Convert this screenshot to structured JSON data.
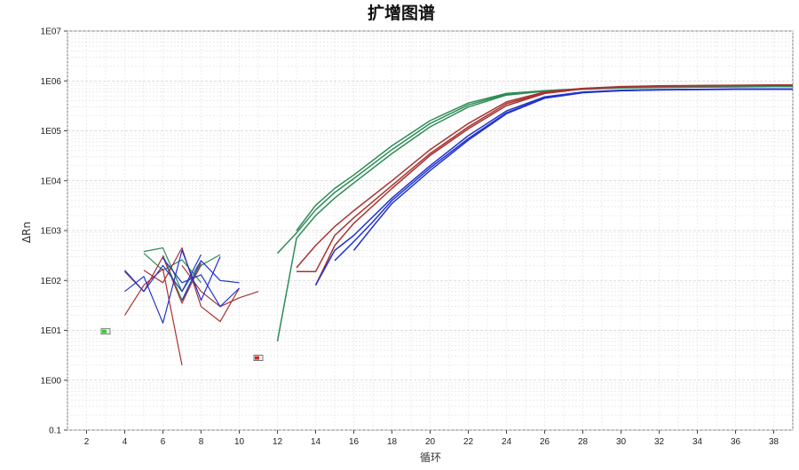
{
  "chart_data": {
    "type": "line",
    "title": "扩增图谱",
    "xlabel": "循环",
    "ylabel": "ΔRn",
    "xlim": [
      1,
      39
    ],
    "yscale": "log",
    "ylim": [
      0.1,
      10000000
    ],
    "xticks": [
      2,
      4,
      6,
      8,
      10,
      12,
      14,
      16,
      18,
      20,
      22,
      24,
      26,
      28,
      30,
      32,
      34,
      36,
      38
    ],
    "yticks": [
      {
        "v": 10000000,
        "label": "1E07"
      },
      {
        "v": 1000000,
        "label": "1E06"
      },
      {
        "v": 100000,
        "label": "1E05"
      },
      {
        "v": 10000,
        "label": "1E04"
      },
      {
        "v": 1000,
        "label": "1E03"
      },
      {
        "v": 100,
        "label": "1E02"
      },
      {
        "v": 10,
        "label": "1E01"
      },
      {
        "v": 1,
        "label": "1E00"
      },
      {
        "v": 0.1,
        "label": "0.1"
      }
    ],
    "grid": true,
    "colors": {
      "green": "#2e8b57",
      "red": "#a83232",
      "blue": "#2233cc"
    },
    "baseline_segments": [
      {
        "color": "green",
        "x": [
          5,
          6,
          7,
          8
        ],
        "y": [
          380,
          450,
          60,
          250
        ]
      },
      {
        "color": "green",
        "x": [
          5,
          6,
          7,
          8
        ],
        "y": [
          350,
          160,
          260,
          90
        ]
      },
      {
        "color": "green",
        "x": [
          6,
          7,
          8,
          9
        ],
        "y": [
          320,
          40,
          200,
          330
        ]
      },
      {
        "color": "red",
        "x": [
          4,
          5,
          6,
          7
        ],
        "y": [
          20,
          80,
          170,
          2
        ]
      },
      {
        "color": "red",
        "x": [
          4,
          5,
          6,
          7,
          8
        ],
        "y": [
          150,
          60,
          300,
          35,
          220
        ]
      },
      {
        "color": "red",
        "x": [
          5,
          6,
          7,
          8,
          9,
          10
        ],
        "y": [
          160,
          90,
          450,
          30,
          15,
          70
        ]
      },
      {
        "color": "red",
        "x": [
          7,
          8,
          9,
          10,
          11
        ],
        "y": [
          200,
          60,
          30,
          45,
          60
        ]
      },
      {
        "color": "blue",
        "x": [
          4,
          5,
          6,
          7,
          8,
          9
        ],
        "y": [
          60,
          120,
          14,
          400,
          40,
          300
        ]
      },
      {
        "color": "blue",
        "x": [
          4,
          5,
          6,
          7,
          8
        ],
        "y": [
          160,
          60,
          200,
          60,
          330
        ]
      },
      {
        "color": "blue",
        "x": [
          6,
          7,
          8,
          9,
          10
        ],
        "y": [
          280,
          90,
          130,
          30,
          70
        ]
      },
      {
        "color": "blue",
        "x": [
          7,
          8,
          9,
          10
        ],
        "y": [
          40,
          250,
          100,
          90
        ]
      }
    ],
    "series": [
      {
        "color": "green",
        "x": [
          12,
          13,
          14,
          15,
          16,
          18,
          20,
          22,
          24,
          26,
          28,
          30,
          32,
          34,
          36,
          38,
          39
        ],
        "y": [
          6,
          700,
          2000,
          4500,
          9000,
          35000,
          120000,
          300000,
          520000,
          620000,
          680000,
          720000,
          740000,
          750000,
          760000,
          770000,
          770000
        ]
      },
      {
        "color": "green",
        "x": [
          12,
          13,
          14,
          15,
          16,
          18,
          20,
          22,
          24,
          26,
          28,
          30,
          32,
          34,
          36,
          38,
          39
        ],
        "y": [
          350,
          900,
          2600,
          5800,
          11000,
          42000,
          140000,
          330000,
          540000,
          630000,
          690000,
          730000,
          750000,
          760000,
          770000,
          780000,
          780000
        ]
      },
      {
        "color": "green",
        "x": [
          13,
          14,
          15,
          16,
          18,
          20,
          22,
          24,
          26,
          28,
          30,
          32,
          34,
          36,
          38,
          39
        ],
        "y": [
          1000,
          3200,
          7000,
          13000,
          50000,
          160000,
          360000,
          560000,
          640000,
          700000,
          740000,
          760000,
          770000,
          780000,
          790000,
          790000
        ]
      },
      {
        "color": "red",
        "x": [
          13,
          14,
          15,
          16,
          18,
          20,
          22,
          24,
          26,
          28,
          30,
          32,
          34,
          36,
          38,
          39
        ],
        "y": [
          150,
          150,
          800,
          1800,
          8000,
          35000,
          120000,
          350000,
          580000,
          700000,
          760000,
          790000,
          800000,
          810000,
          820000,
          820000
        ]
      },
      {
        "color": "red",
        "x": [
          13,
          14,
          15,
          16,
          18,
          20,
          22,
          24,
          26,
          28,
          30,
          32,
          34,
          36,
          38,
          39
        ],
        "y": [
          180,
          500,
          1200,
          2500,
          10000,
          42000,
          140000,
          380000,
          600000,
          710000,
          770000,
          800000,
          810000,
          820000,
          830000,
          830000
        ]
      },
      {
        "color": "red",
        "x": [
          14,
          15,
          16,
          18,
          20,
          22,
          24,
          26,
          28,
          30,
          32,
          34,
          36,
          38,
          39
        ],
        "y": [
          80,
          500,
          1400,
          7000,
          32000,
          110000,
          320000,
          560000,
          690000,
          750000,
          780000,
          800000,
          810000,
          820000,
          820000
        ]
      },
      {
        "color": "blue",
        "x": [
          14,
          15,
          16,
          18,
          20,
          22,
          24,
          26,
          28,
          30,
          32,
          34,
          36,
          38,
          39
        ],
        "y": [
          80,
          400,
          800,
          4500,
          20000,
          80000,
          250000,
          480000,
          600000,
          650000,
          670000,
          680000,
          690000,
          690000,
          690000
        ]
      },
      {
        "color": "blue",
        "x": [
          15,
          16,
          17,
          18,
          20,
          22,
          24,
          26,
          28,
          30,
          32,
          34,
          36,
          38,
          39
        ],
        "y": [
          250,
          600,
          1500,
          4000,
          18000,
          70000,
          230000,
          460000,
          590000,
          640000,
          660000,
          670000,
          680000,
          680000,
          680000
        ]
      },
      {
        "color": "blue",
        "x": [
          16,
          17,
          18,
          20,
          22,
          24,
          26,
          28,
          30,
          32,
          34,
          36,
          38,
          39
        ],
        "y": [
          400,
          1200,
          3500,
          16000,
          65000,
          220000,
          450000,
          580000,
          640000,
          660000,
          670000,
          680000,
          680000,
          680000
        ]
      }
    ],
    "markers": [
      {
        "x": 3.0,
        "y": 9.5,
        "color": "#33cc33"
      },
      {
        "x": 11.0,
        "y": 2.8,
        "color": "#dd2222"
      }
    ]
  }
}
